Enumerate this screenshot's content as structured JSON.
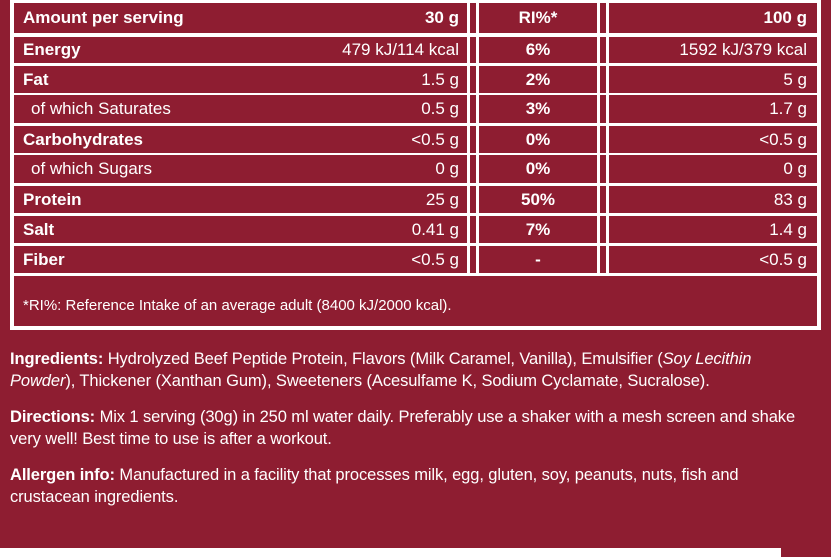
{
  "theme": {
    "background": "#8e1d31",
    "text": "#ffffff",
    "border": "#ffffff"
  },
  "table": {
    "header": {
      "amount_label": "Amount per serving",
      "serving_size": "30 g",
      "ri_label": "RI%*",
      "per_100_label": "100 g"
    },
    "rows": [
      {
        "label": "Energy",
        "per_serving": "479 kJ/114 kcal",
        "ri": "6%",
        "per_100g": "1592 kJ/379 kcal"
      },
      {
        "label": "Fat",
        "per_serving": "1.5 g",
        "ri": "2%",
        "per_100g": "5 g"
      },
      {
        "label": "of which Saturates",
        "per_serving": "0.5 g",
        "ri": "3%",
        "per_100g": "1.7 g"
      },
      {
        "label": "Carbohydrates",
        "per_serving": "<0.5 g",
        "ri": "0%",
        "per_100g": "<0.5 g"
      },
      {
        "label": "of which Sugars",
        "per_serving": "0 g",
        "ri": "0%",
        "per_100g": "0 g"
      },
      {
        "label": "Protein",
        "per_serving": "25 g",
        "ri": "50%",
        "per_100g": "83 g"
      },
      {
        "label": "Salt",
        "per_serving": "0.41 g",
        "ri": "7%",
        "per_100g": "1.4 g"
      },
      {
        "label": "Fiber",
        "per_serving": "<0.5 g",
        "ri": "-",
        "per_100g": "<0.5 g"
      }
    ],
    "footnote": "*RI%: Reference Intake of an average adult (8400 kJ/2000 kcal)."
  },
  "info": {
    "ingredients": {
      "label": "Ingredients:",
      "text1": " Hydrolyzed Beef Peptide Protein, Flavors (Milk Caramel, Vanilla), Emulsifier (",
      "italic": "Soy Lecithin Powder",
      "text2": "), Thickener (Xanthan Gum), Sweeteners (Acesulfame K, Sodium Cyclamate, Sucralose)."
    },
    "directions": {
      "label": "Directions:",
      "text": " Mix 1 serving (30g) in 250 ml water daily. Preferably use a shaker with a mesh screen and shake very well! Best time to use is after a workout."
    },
    "allergen": {
      "label": "Allergen info:",
      "text": " Manufactured in a facility that processes milk, egg, gluten, soy, peanuts, nuts, fish and crustacean ingredients."
    }
  }
}
